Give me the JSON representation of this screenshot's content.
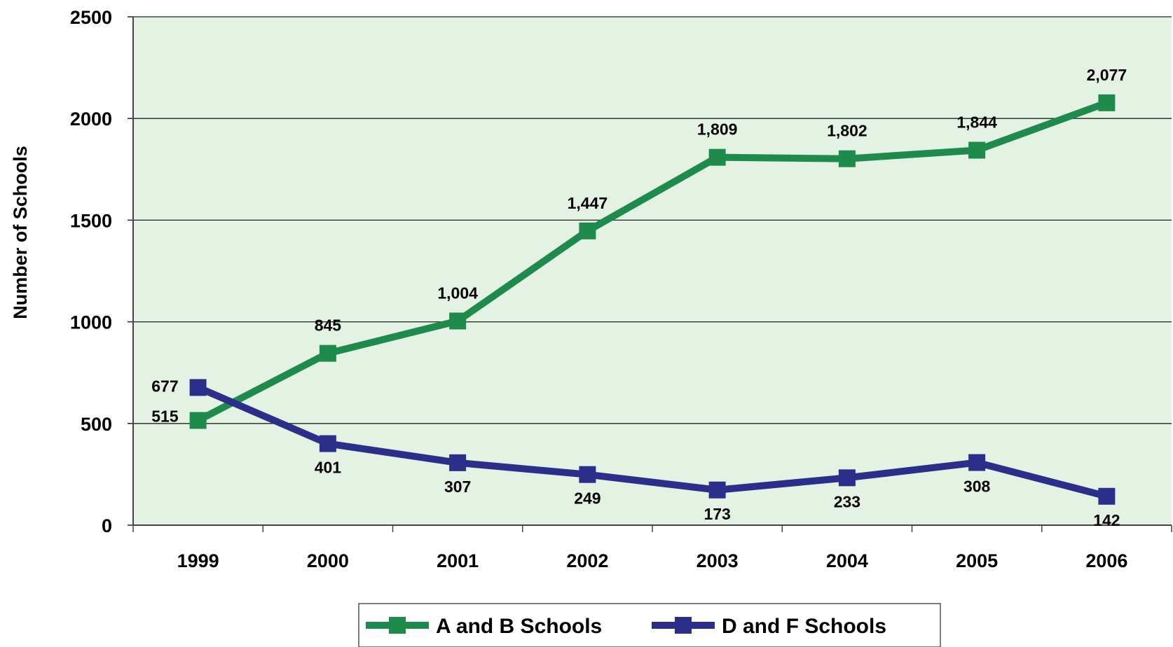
{
  "chart_data": {
    "type": "line",
    "categories": [
      "1999",
      "2000",
      "2001",
      "2002",
      "2003",
      "2004",
      "2005",
      "2006"
    ],
    "ylabel": "Number of Schools",
    "xlabel": "",
    "ylim": [
      0,
      2500
    ],
    "yticks": [
      "0",
      "500",
      "1000",
      "1500",
      "2000",
      "2500"
    ],
    "grid": true,
    "legend_position": "bottom",
    "series": [
      {
        "name": "A and B Schools",
        "color": "#1e8a4c",
        "values": [
          515,
          845,
          1004,
          1447,
          1809,
          1802,
          1844,
          2077
        ],
        "labels": [
          "515",
          "845",
          "1,004",
          "1,447",
          "1,809",
          "1,802",
          "1,844",
          "2,077"
        ]
      },
      {
        "name": "D and F Schools",
        "color": "#2b2f8a",
        "values": [
          677,
          401,
          307,
          249,
          173,
          233,
          308,
          142
        ],
        "labels": [
          "677",
          "401",
          "307",
          "249",
          "173",
          "233",
          "308",
          "142"
        ]
      }
    ],
    "plot_background": "#e3f2e3"
  }
}
